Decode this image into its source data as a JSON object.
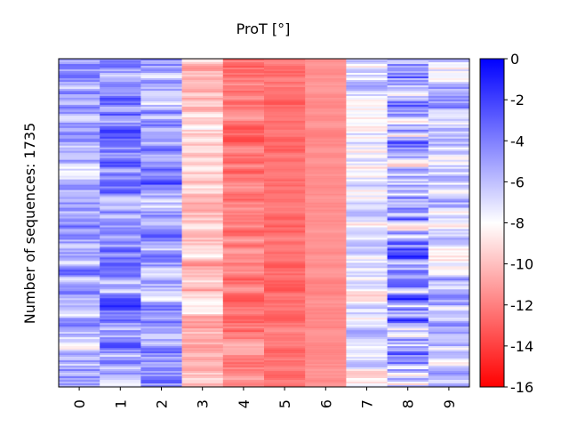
{
  "chart_data": {
    "type": "heatmap",
    "title": "ProT [°]",
    "ylabel": "Number of sequences: 1735",
    "xlabel": "",
    "x_categories": [
      "0",
      "1",
      "2",
      "3",
      "4",
      "5",
      "6",
      "7",
      "8",
      "9"
    ],
    "colorbar": {
      "ticks": [
        "0",
        "-2",
        "-4",
        "-6",
        "-8",
        "-10",
        "-12",
        "-14",
        "-16"
      ],
      "range": [
        -16,
        0
      ],
      "colors": {
        "max": "#0000ff",
        "mid": "#ffffff",
        "min": "#ff0000"
      }
    },
    "n_sequences": 1735,
    "column_mean_values": [
      -5.5,
      -4.5,
      -5.0,
      -10.0,
      -12.0,
      -12.5,
      -11.5,
      -7.5,
      -5.0,
      -6.5
    ],
    "column_variability": [
      3.0,
      3.0,
      3.0,
      2.0,
      1.5,
      1.0,
      0.5,
      2.5,
      4.5,
      3.0
    ]
  }
}
